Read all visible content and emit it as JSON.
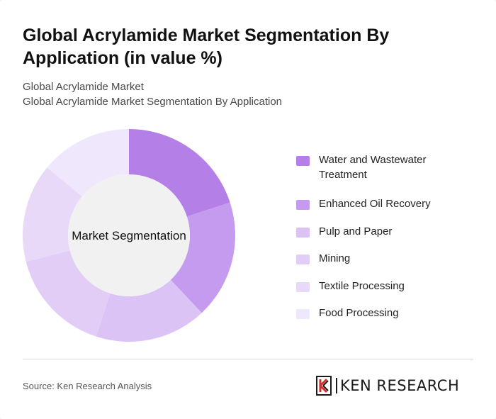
{
  "title": "Global Acrylamide Market Segmentation By Application (in value %)",
  "subtitle_line1": "Global Acrylamide Market",
  "subtitle_line2": "Global Acrylamide Market Segmentation By Application",
  "chart_data": {
    "type": "pie",
    "variant": "donut",
    "center_label": "Market Segmentation",
    "categories": [
      "Water and Wastewater Treatment",
      "Enhanced Oil Recovery",
      "Pulp and Paper",
      "Mining",
      "Textile Processing",
      "Food Processing"
    ],
    "values": [
      20,
      18,
      17,
      16,
      15,
      14
    ],
    "colors": [
      "#b57fe8",
      "#c49bee",
      "#dcc3f5",
      "#e2cdf6",
      "#e8d9f8",
      "#efe7fb"
    ],
    "legend_position": "right"
  },
  "source": "Source: Ken Research Analysis",
  "logo": {
    "text": "KEN RESEARCH",
    "mark": "K"
  }
}
